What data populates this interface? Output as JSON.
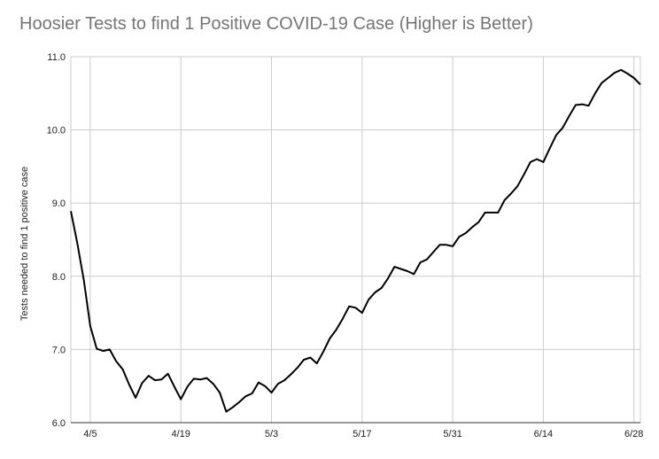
{
  "chart_data": {
    "type": "line",
    "title": "Hoosier Tests to find 1 Positive COVID-19 Case (Higher is Better)",
    "xlabel": "",
    "ylabel": "Tests needed to find 1 positive case",
    "ylim": [
      6.0,
      11.0
    ],
    "yticks": [
      "6.0",
      "7.0",
      "8.0",
      "9.0",
      "10.0",
      "11.0"
    ],
    "xticks": [
      "4/5",
      "4/19",
      "5/3",
      "5/17",
      "5/31",
      "6/14",
      "6/28"
    ],
    "x_start": "4/2",
    "x_end": "6/29",
    "grid": true,
    "line_color": "#000000",
    "series": [
      {
        "values": [
          8.89,
          8.45,
          7.95,
          7.32,
          7.01,
          6.98,
          7.0,
          6.84,
          6.73,
          6.52,
          6.34,
          6.54,
          6.64,
          6.58,
          6.59,
          6.67,
          6.49,
          6.32,
          6.49,
          6.6,
          6.59,
          6.61,
          6.53,
          6.41,
          6.15,
          6.21,
          6.28,
          6.36,
          6.4,
          6.55,
          6.5,
          6.41,
          6.53,
          6.58,
          6.66,
          6.75,
          6.86,
          6.89,
          6.81,
          6.97,
          7.15,
          7.27,
          7.42,
          7.59,
          7.57,
          7.5,
          7.68,
          7.78,
          7.84,
          7.97,
          8.13,
          8.1,
          8.07,
          8.03,
          8.19,
          8.23,
          8.33,
          8.43,
          8.43,
          8.41,
          8.54,
          8.59,
          8.67,
          8.74,
          8.87,
          8.87,
          8.87,
          9.04,
          9.13,
          9.23,
          9.39,
          9.56,
          9.6,
          9.56,
          9.75,
          9.93,
          10.03,
          10.19,
          10.34,
          10.35,
          10.33,
          10.5,
          10.64,
          10.71,
          10.78,
          10.82,
          10.77,
          10.71,
          10.62
        ]
      }
    ]
  }
}
